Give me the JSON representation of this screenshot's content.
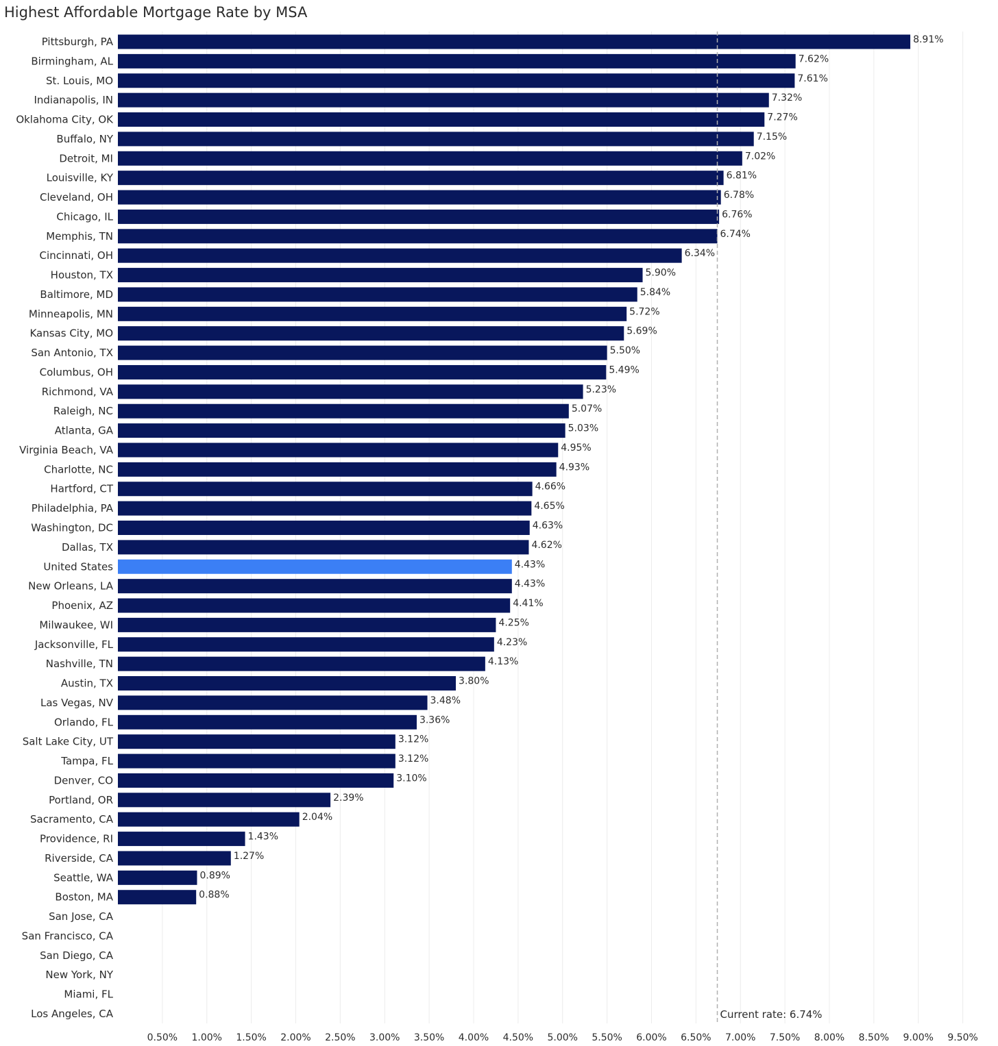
{
  "chart_data": {
    "type": "bar",
    "orientation": "horizontal",
    "title": "Highest Affordable Mortgage Rate by MSA",
    "xlabel": "",
    "ylabel": "",
    "xlim": [
      0,
      9.75
    ],
    "x_ticks": [
      0.5,
      1.0,
      1.5,
      2.0,
      2.5,
      3.0,
      3.5,
      4.0,
      4.5,
      5.0,
      5.5,
      6.0,
      6.5,
      7.0,
      7.5,
      8.0,
      8.5,
      9.0,
      9.5
    ],
    "x_tick_labels": [
      "0.50%",
      "1.00%",
      "1.50%",
      "2.00%",
      "2.50%",
      "3.00%",
      "3.50%",
      "4.00%",
      "4.50%",
      "5.00%",
      "5.50%",
      "6.00%",
      "6.50%",
      "7.00%",
      "7.50%",
      "8.00%",
      "8.50%",
      "9.00%",
      "9.50%"
    ],
    "grid": "vertical",
    "colors": {
      "bar": "#08175c",
      "highlight": "#3b7ff5",
      "gridline": "#ececec",
      "reference": "#b0b0b0",
      "text": "#2b2b2b"
    },
    "highlight_category": "United States",
    "reference_line": {
      "value": 6.74,
      "label": "Current rate: 6.74%"
    },
    "categories": [
      "Pittsburgh, PA",
      "Birmingham, AL",
      "St. Louis, MO",
      "Indianapolis, IN",
      "Oklahoma City, OK",
      "Buffalo, NY",
      "Detroit, MI",
      "Louisville, KY",
      "Cleveland, OH",
      "Chicago, IL",
      "Memphis, TN",
      "Cincinnati, OH",
      "Houston, TX",
      "Baltimore, MD",
      "Minneapolis, MN",
      "Kansas City, MO",
      "San Antonio, TX",
      "Columbus, OH",
      "Richmond, VA",
      "Raleigh, NC",
      "Atlanta, GA",
      "Virginia Beach, VA",
      "Charlotte, NC",
      "Hartford, CT",
      "Philadelphia, PA",
      "Washington, DC",
      "Dallas, TX",
      "United States",
      "New Orleans, LA",
      "Phoenix, AZ",
      "Milwaukee, WI",
      "Jacksonville, FL",
      "Nashville, TN",
      "Austin, TX",
      "Las Vegas, NV",
      "Orlando, FL",
      "Salt Lake City, UT",
      "Tampa, FL",
      "Denver, CO",
      "Portland, OR",
      "Sacramento, CA",
      "Providence, RI",
      "Riverside, CA",
      "Seattle, WA",
      "Boston, MA",
      "San Jose, CA",
      "San Francisco, CA",
      "San Diego, CA",
      "New York, NY",
      "Miami, FL",
      "Los Angeles, CA"
    ],
    "values": [
      8.91,
      7.62,
      7.61,
      7.32,
      7.27,
      7.15,
      7.02,
      6.81,
      6.78,
      6.76,
      6.74,
      6.34,
      5.9,
      5.84,
      5.72,
      5.69,
      5.5,
      5.49,
      5.23,
      5.07,
      5.03,
      4.95,
      4.93,
      4.66,
      4.65,
      4.63,
      4.62,
      4.43,
      4.43,
      4.41,
      4.25,
      4.23,
      4.13,
      3.8,
      3.48,
      3.36,
      3.12,
      3.12,
      3.1,
      2.39,
      2.04,
      1.43,
      1.27,
      0.89,
      0.88,
      null,
      null,
      null,
      null,
      null,
      null
    ],
    "value_labels": [
      "8.91%",
      "7.62%",
      "7.61%",
      "7.32%",
      "7.27%",
      "7.15%",
      "7.02%",
      "6.81%",
      "6.78%",
      "6.76%",
      "6.74%",
      "6.34%",
      "5.90%",
      "5.84%",
      "5.72%",
      "5.69%",
      "5.50%",
      "5.49%",
      "5.23%",
      "5.07%",
      "5.03%",
      "4.95%",
      "4.93%",
      "4.66%",
      "4.65%",
      "4.63%",
      "4.62%",
      "4.43%",
      "4.43%",
      "4.41%",
      "4.25%",
      "4.23%",
      "4.13%",
      "3.80%",
      "3.48%",
      "3.36%",
      "3.12%",
      "3.12%",
      "3.10%",
      "2.39%",
      "2.04%",
      "1.43%",
      "1.27%",
      "0.89%",
      "0.88%",
      "",
      "",
      "",
      "",
      "",
      ""
    ]
  }
}
